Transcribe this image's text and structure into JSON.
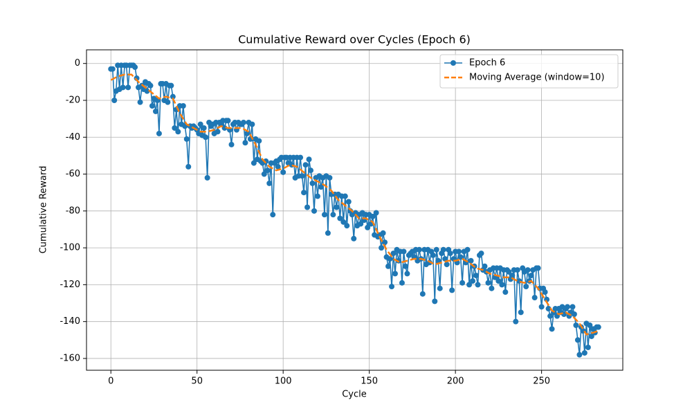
{
  "chart_data": {
    "type": "line",
    "title": "Cumulative Reward over Cycles (Epoch 6)",
    "x_label": "Cycle",
    "y_label": "Cumulative Reward",
    "xlim": [
      -14.15,
      297.15
    ],
    "ylim": [
      -166.4,
      7.4
    ],
    "xticks": [
      0,
      50,
      100,
      150,
      200,
      250
    ],
    "yticks": [
      -160,
      -140,
      -120,
      -100,
      -80,
      -60,
      -40,
      -20,
      0
    ],
    "grid": true,
    "legend": "upper right",
    "series": [
      {
        "name": "Epoch 6",
        "color": "#1f77b4",
        "marker": "circle",
        "linestyle": "solid",
        "x": [
          0,
          1,
          2,
          3,
          4,
          5,
          6,
          7,
          8,
          9,
          10,
          11,
          12,
          13,
          14,
          15,
          16,
          17,
          18,
          19,
          20,
          21,
          22,
          23,
          24,
          25,
          26,
          27,
          28,
          29,
          30,
          31,
          32,
          33,
          34,
          35,
          36,
          37,
          38,
          39,
          40,
          41,
          42,
          43,
          44,
          45,
          46,
          47,
          48,
          49,
          50,
          51,
          52,
          53,
          54,
          55,
          56,
          57,
          58,
          59,
          60,
          61,
          62,
          63,
          64,
          65,
          66,
          67,
          68,
          69,
          70,
          71,
          72,
          73,
          74,
          75,
          76,
          77,
          78,
          79,
          80,
          81,
          82,
          83,
          84,
          85,
          86,
          87,
          88,
          89,
          90,
          91,
          92,
          93,
          94,
          95,
          96,
          97,
          98,
          99,
          100,
          101,
          102,
          103,
          104,
          105,
          106,
          107,
          108,
          109,
          110,
          111,
          112,
          113,
          114,
          115,
          116,
          117,
          118,
          119,
          120,
          121,
          122,
          123,
          124,
          125,
          126,
          127,
          128,
          129,
          130,
          131,
          132,
          133,
          134,
          135,
          136,
          137,
          138,
          139,
          140,
          141,
          142,
          143,
          144,
          145,
          146,
          147,
          148,
          149,
          150,
          151,
          152,
          153,
          154,
          155,
          156,
          157,
          158,
          159,
          160,
          161,
          162,
          163,
          164,
          165,
          166,
          167,
          168,
          169,
          170,
          171,
          172,
          173,
          174,
          175,
          176,
          177,
          178,
          179,
          180,
          181,
          182,
          183,
          184,
          185,
          186,
          187,
          188,
          189,
          190,
          191,
          192,
          193,
          194,
          195,
          196,
          197,
          198,
          199,
          200,
          201,
          202,
          203,
          204,
          205,
          206,
          207,
          208,
          209,
          210,
          211,
          212,
          213,
          214,
          215,
          216,
          217,
          218,
          219,
          220,
          221,
          222,
          223,
          224,
          225,
          226,
          227,
          228,
          229,
          230,
          231,
          232,
          233,
          234,
          235,
          236,
          237,
          238,
          239,
          240,
          241,
          242,
          243,
          244,
          245,
          246,
          247,
          248,
          249,
          250,
          251,
          252,
          253,
          254,
          255,
          256,
          257,
          258,
          259,
          260,
          261,
          262,
          263,
          264,
          265,
          266,
          267,
          268,
          269,
          270,
          271,
          272,
          273,
          274,
          275,
          276,
          277,
          278,
          279,
          280,
          281,
          282,
          283
        ],
        "values": [
          -3,
          -3,
          -20,
          -15,
          -1,
          -14,
          -1,
          -13,
          -1,
          -1,
          -13,
          -1,
          -1,
          -1,
          -2,
          -8,
          -13,
          -21,
          -12,
          -14,
          -10,
          -15,
          -11,
          -12,
          -23,
          -19,
          -26,
          -20,
          -38,
          -11,
          -11,
          -20,
          -11,
          -21,
          -12,
          -12,
          -18,
          -35,
          -25,
          -37,
          -23,
          -33,
          -23,
          -34,
          -41,
          -56,
          -34,
          -35,
          -34,
          -35,
          -36,
          -38,
          -33,
          -39,
          -35,
          -40,
          -62,
          -32,
          -34,
          -33,
          -38,
          -32,
          -37,
          -32,
          -33,
          -31,
          -35,
          -31,
          -31,
          -36,
          -44,
          -33,
          -32,
          -36,
          -32,
          -33,
          -33,
          -32,
          -43,
          -38,
          -32,
          -41,
          -33,
          -54,
          -41,
          -52,
          -42,
          -53,
          -54,
          -60,
          -53,
          -58,
          -65,
          -54,
          -82,
          -54,
          -53,
          -56,
          -52,
          -51,
          -59,
          -51,
          -51,
          -54,
          -51,
          -55,
          -51,
          -62,
          -51,
          -61,
          -51,
          -61,
          -70,
          -55,
          -78,
          -52,
          -58,
          -65,
          -80,
          -62,
          -72,
          -61,
          -67,
          -62,
          -82,
          -61,
          -92,
          -62,
          -71,
          -82,
          -71,
          -78,
          -71,
          -84,
          -72,
          -86,
          -72,
          -88,
          -75,
          -80,
          -82,
          -95,
          -81,
          -88,
          -82,
          -87,
          -81,
          -85,
          -82,
          -89,
          -82,
          -87,
          -83,
          -93,
          -81,
          -94,
          -93,
          -100,
          -92,
          -97,
          -105,
          -110,
          -106,
          -121,
          -103,
          -114,
          -101,
          -107,
          -102,
          -119,
          -102,
          -110,
          -114,
          -104,
          -103,
          -102,
          -105,
          -101,
          -107,
          -101,
          -106,
          -125,
          -101,
          -109,
          -101,
          -108,
          -102,
          -104,
          -129,
          -101,
          -107,
          -122,
          -103,
          -101,
          -106,
          -109,
          -101,
          -103,
          -123,
          -106,
          -102,
          -108,
          -102,
          -105,
          -119,
          -102,
          -108,
          -101,
          -120,
          -107,
          -118,
          -110,
          -115,
          -120,
          -104,
          -103,
          -112,
          -110,
          -113,
          -119,
          -112,
          -122,
          -111,
          -116,
          -111,
          -118,
          -111,
          -120,
          -112,
          -124,
          -112,
          -113,
          -117,
          -115,
          -112,
          -140,
          -112,
          -118,
          -135,
          -111,
          -113,
          -121,
          -112,
          -118,
          -115,
          -112,
          -127,
          -111,
          -111,
          -122,
          -132,
          -122,
          -124,
          -128,
          -133,
          -137,
          -144,
          -135,
          -133,
          -137,
          -133,
          -135,
          -132,
          -136,
          -133,
          -132,
          -137,
          -135,
          -132,
          -136,
          -142,
          -150,
          -158,
          -143,
          -145,
          -157,
          -141,
          -154,
          -142,
          -148,
          -144,
          -146,
          -143,
          -143
        ]
      },
      {
        "name": "Moving Average (window=10)",
        "color": "#ff7f0e",
        "marker": "none",
        "linestyle": "dashed",
        "x": [
          0,
          4,
          8,
          12,
          16,
          20,
          24,
          28,
          32,
          36,
          40,
          44,
          48,
          52,
          56,
          60,
          64,
          68,
          72,
          76,
          80,
          84,
          88,
          92,
          96,
          100,
          104,
          108,
          112,
          116,
          120,
          124,
          128,
          132,
          136,
          140,
          144,
          148,
          152,
          156,
          160,
          164,
          168,
          172,
          176,
          180,
          184,
          188,
          192,
          196,
          200,
          204,
          208,
          212,
          216,
          220,
          224,
          228,
          232,
          236,
          240,
          244,
          248,
          252,
          256,
          260,
          264,
          268,
          272,
          276,
          280,
          283
        ],
        "values": [
          -9,
          -7,
          -6,
          -6,
          -10,
          -13,
          -16,
          -19,
          -18,
          -19,
          -27,
          -33,
          -35,
          -37,
          -37,
          -36,
          -34,
          -35,
          -35,
          -35,
          -37,
          -44,
          -52,
          -56,
          -58,
          -57,
          -55,
          -56,
          -59,
          -62,
          -64,
          -66,
          -69,
          -74,
          -77,
          -80,
          -84,
          -84,
          -86,
          -94,
          -101,
          -106,
          -108,
          -107,
          -106,
          -106,
          -107,
          -109,
          -108,
          -107,
          -107,
          -106,
          -108,
          -111,
          -112,
          -114,
          -115,
          -116,
          -116,
          -118,
          -119,
          -118,
          -122,
          -128,
          -134,
          -136,
          -135,
          -137,
          -141,
          -147,
          -146,
          -145
        ]
      }
    ]
  }
}
